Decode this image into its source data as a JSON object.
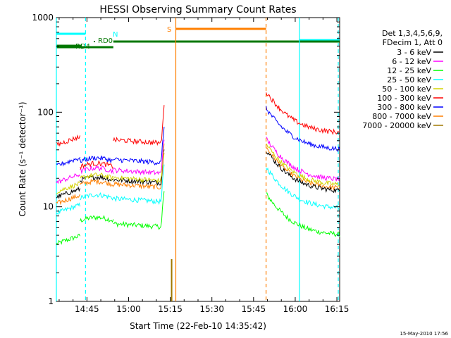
{
  "chart_data": {
    "type": "line",
    "title": "HESSI Observing Summary Count Rates",
    "xlabel": "Start Time (22-Feb-10 14:35:42)",
    "ylabel": "Count Rate (s⁻¹ detector⁻¹)",
    "y_scale": "log",
    "ylim": [
      1,
      1000
    ],
    "xlim_minutes": [
      874,
      976
    ],
    "x_ticks": [
      {
        "t": 885,
        "label": "14:45"
      },
      {
        "t": 900,
        "label": "15:00"
      },
      {
        "t": 915,
        "label": "15:15"
      },
      {
        "t": 930,
        "label": "15:30"
      },
      {
        "t": 945,
        "label": "15:45"
      },
      {
        "t": 960,
        "label": "16:00"
      },
      {
        "t": 975,
        "label": "16:15"
      }
    ],
    "y_ticks": [
      {
        "v": 1,
        "label": "1"
      },
      {
        "v": 10,
        "label": "10"
      },
      {
        "v": 100,
        "label": "100"
      },
      {
        "v": 1000,
        "label": "1000"
      }
    ],
    "legend": {
      "header": [
        "Det 1,3,4,5,6,9,",
        "FDecim 1, Att 0"
      ],
      "placement": "right"
    },
    "series": [
      {
        "name": "3 - 6 keV",
        "color": "#000000",
        "a": 14,
        "b": 20,
        "c": 19,
        "d": 16
      },
      {
        "name": "6 - 12 keV",
        "color": "#ff00ff",
        "a": 20,
        "b": 25,
        "c": 24,
        "d": 21
      },
      {
        "name": "12 - 25 keV",
        "color": "#00ff00",
        "a": 4.5,
        "b": 7.5,
        "c": 6.5,
        "d": 5.5
      },
      {
        "name": "25 - 50 keV",
        "color": "#00ffff",
        "a": 9.5,
        "b": 13,
        "c": 12,
        "d": 10.5
      },
      {
        "name": "50 - 100 keV",
        "color": "#d2d200",
        "a": 16,
        "b": 21,
        "c": 20,
        "d": 18.5
      },
      {
        "name": "100 - 300 keV",
        "color": "#ff0000",
        "a": 50,
        "b": 28,
        "c": 50,
        "d": 66
      },
      {
        "name": "300 - 800 keV",
        "color": "#0000ff",
        "a": 30,
        "b": 32,
        "c": 31,
        "d": 44
      },
      {
        "name": "800 - 7000 keV",
        "color": "#ff7f00",
        "a": 12,
        "b": 18,
        "c": 17,
        "d": 17
      },
      {
        "name": "7000 - 20000 keV",
        "color": "#a07800",
        "a": 0,
        "b": 0,
        "c": 0,
        "d": 0
      }
    ],
    "segments": [
      {
        "from": 874,
        "to": 882.5,
        "group": "a"
      },
      {
        "from": 882.5,
        "to": 894.5,
        "group": "b"
      },
      {
        "from": 894.5,
        "to": 912.8,
        "group": "c"
      },
      {
        "from": 949.5,
        "to": 976,
        "group": "d"
      }
    ],
    "annotations": {
      "flags": [
        {
          "label": "N",
          "from": 874,
          "to": 884.5,
          "color": "#00ffff"
        },
        {
          "label": "N",
          "from": 961.5,
          "to": 976,
          "color": "#00ffff"
        },
        {
          "label": "RD0",
          "from": 874,
          "to": 883,
          "color": "#007700"
        },
        {
          "label": "RD4",
          "from": 874,
          "to": 894.5,
          "color": "#007700"
        },
        {
          "label": "S",
          "from": 917,
          "to": 949.5,
          "color": "#ff7f00"
        }
      ],
      "bars": [
        {
          "from": 894.5,
          "to": 976,
          "color": "#007700"
        }
      ],
      "vertical_lines": [
        {
          "t": 874,
          "color": "#00ffff",
          "style": "solid"
        },
        {
          "t": 884.5,
          "color": "#00ffff",
          "style": "dashed"
        },
        {
          "t": 917,
          "color": "#ff7f00",
          "style": "solid"
        },
        {
          "t": 949.5,
          "color": "#ff7f00",
          "style": "dashed"
        },
        {
          "t": 961.5,
          "color": "#00ffff",
          "style": "solid"
        },
        {
          "t": 975.5,
          "color": "#00ffff",
          "style": "dashed"
        }
      ],
      "spike": {
        "t": 915.5,
        "value": 2.8,
        "color": "#a07800"
      }
    },
    "footer_date": "15-May-2010 17:56"
  }
}
